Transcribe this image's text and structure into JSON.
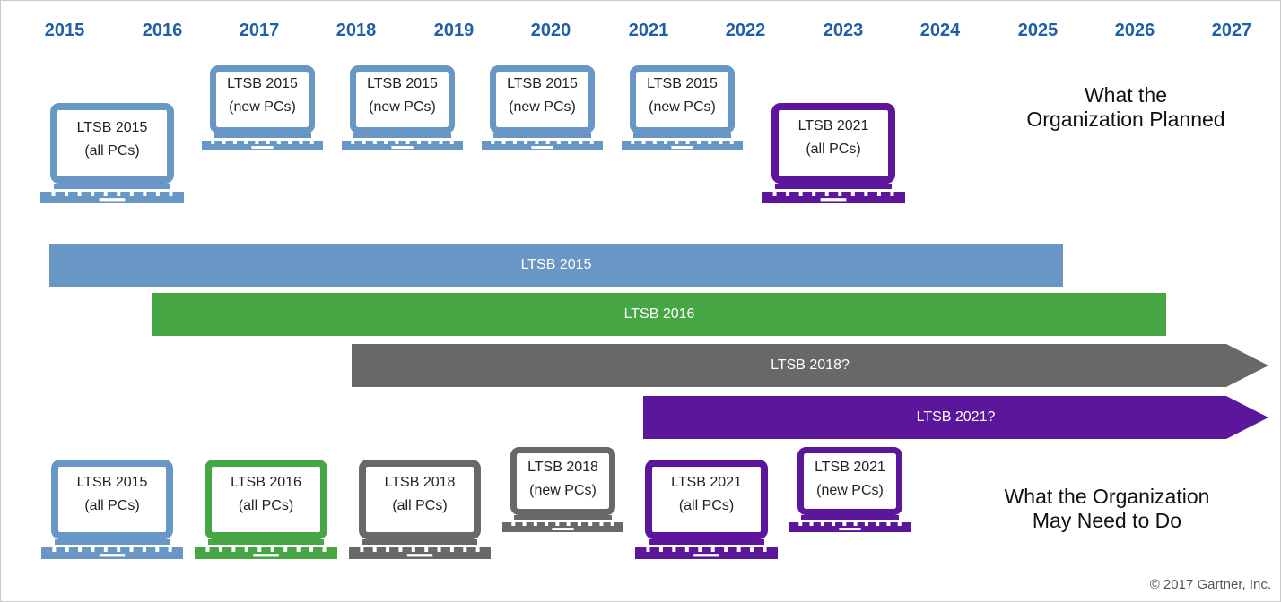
{
  "colors": {
    "blue": "#6896c5",
    "green": "#46a643",
    "gray": "#686868",
    "purple": "#5c169c",
    "year_text": "#1f5ea8"
  },
  "years": [
    "2015",
    "2016",
    "2017",
    "2018",
    "2019",
    "2020",
    "2021",
    "2022",
    "2023",
    "2024",
    "2025",
    "2026",
    "2027"
  ],
  "planned": {
    "title_line1": "What the",
    "title_line2": "Organization Planned",
    "laptops": [
      {
        "line1": "LTSB 2015",
        "line2": "(all PCs)",
        "color": "blue"
      },
      {
        "line1": "LTSB 2015",
        "line2": "(new PCs)",
        "color": "blue"
      },
      {
        "line1": "LTSB 2015",
        "line2": "(new PCs)",
        "color": "blue"
      },
      {
        "line1": "LTSB 2015",
        "line2": "(new PCs)",
        "color": "blue"
      },
      {
        "line1": "LTSB 2015",
        "line2": "(new PCs)",
        "color": "blue"
      },
      {
        "line1": "LTSB 2021",
        "line2": "(all PCs)",
        "color": "purple"
      }
    ]
  },
  "bars": [
    {
      "label": "LTSB 2015",
      "color": "blue",
      "arrow": false
    },
    {
      "label": "LTSB 2016",
      "color": "green",
      "arrow": false
    },
    {
      "label": "LTSB 2018?",
      "color": "gray",
      "arrow": true
    },
    {
      "label": "LTSB 2021?",
      "color": "purple",
      "arrow": true
    }
  ],
  "needed": {
    "title_line1": "What the Organization",
    "title_line2": "May Need to Do",
    "laptops": [
      {
        "line1": "LTSB 2015",
        "line2": "(all PCs)",
        "color": "blue"
      },
      {
        "line1": "LTSB 2016",
        "line2": "(all PCs)",
        "color": "green"
      },
      {
        "line1": "LTSB 2018",
        "line2": "(all PCs)",
        "color": "gray"
      },
      {
        "line1": "LTSB 2018",
        "line2": "(new PCs)",
        "color": "gray"
      },
      {
        "line1": "LTSB 2021",
        "line2": "(all PCs)",
        "color": "purple"
      },
      {
        "line1": "LTSB 2021",
        "line2": "(new PCs)",
        "color": "purple"
      }
    ]
  },
  "copyright": "© 2017 Gartner, Inc."
}
